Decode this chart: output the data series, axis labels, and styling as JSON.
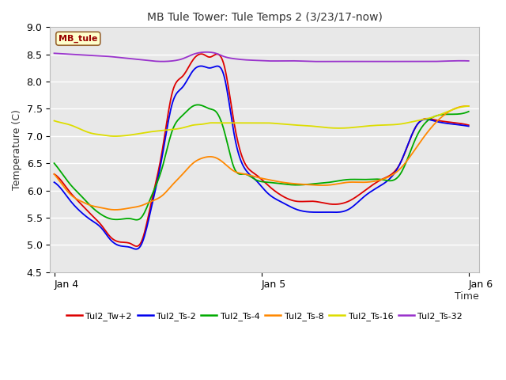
{
  "title": "MB Tule Tower: Tule Temps 2 (3/23/17-now)",
  "xlabel": "Time",
  "ylabel": "Temperature (C)",
  "ylim": [
    4.5,
    9.0
  ],
  "yticks": [
    4.5,
    5.0,
    5.5,
    6.0,
    6.5,
    7.0,
    7.5,
    8.0,
    8.5,
    9.0
  ],
  "xtick_labels": [
    "Jan 4",
    "Jan 5",
    "Jan 6"
  ],
  "plot_bg_color": "#e8e8e8",
  "fig_bg_color": "#ffffff",
  "annotation_box": {
    "text": "MB_tule",
    "facecolor": "#ffffcc",
    "edgecolor": "#996633",
    "textcolor": "#990000"
  },
  "series": {
    "Tul2_Tw+2": {
      "color": "#dd0000",
      "points_x": [
        0.0,
        0.04,
        0.08,
        0.13,
        0.18,
        0.23,
        0.27,
        0.32,
        0.37,
        0.42,
        0.47,
        0.52,
        0.57,
        0.62,
        0.67,
        0.72,
        0.75,
        0.78,
        0.82,
        0.87,
        0.92,
        0.97,
        1.03,
        1.1,
        1.17,
        1.25,
        1.33,
        1.42,
        1.5,
        1.58,
        1.67,
        1.75,
        1.83,
        1.92,
        2.0
      ],
      "points_y": [
        6.3,
        6.15,
        5.95,
        5.75,
        5.55,
        5.35,
        5.15,
        5.05,
        5.02,
        5.05,
        5.8,
        6.7,
        7.8,
        8.1,
        8.4,
        8.5,
        8.45,
        8.5,
        8.3,
        7.2,
        6.5,
        6.3,
        6.1,
        5.9,
        5.8,
        5.8,
        5.75,
        5.8,
        6.0,
        6.2,
        6.5,
        7.2,
        7.3,
        7.25,
        7.2
      ]
    },
    "Tul2_Ts-2": {
      "color": "#0000ee",
      "points_x": [
        0.0,
        0.04,
        0.08,
        0.13,
        0.18,
        0.23,
        0.27,
        0.32,
        0.37,
        0.42,
        0.47,
        0.52,
        0.57,
        0.62,
        0.67,
        0.72,
        0.75,
        0.78,
        0.82,
        0.87,
        0.92,
        0.97,
        1.03,
        1.1,
        1.17,
        1.25,
        1.33,
        1.42,
        1.5,
        1.58,
        1.67,
        1.75,
        1.83,
        1.92,
        2.0
      ],
      "points_y": [
        6.15,
        6.0,
        5.8,
        5.6,
        5.45,
        5.3,
        5.1,
        4.98,
        4.95,
        5.0,
        5.7,
        6.6,
        7.6,
        7.9,
        8.2,
        8.28,
        8.25,
        8.28,
        8.1,
        7.0,
        6.4,
        6.2,
        5.95,
        5.78,
        5.65,
        5.6,
        5.6,
        5.65,
        5.9,
        6.1,
        6.5,
        7.2,
        7.28,
        7.22,
        7.18
      ]
    },
    "Tul2_Ts-4": {
      "color": "#00aa00",
      "points_x": [
        0.0,
        0.04,
        0.08,
        0.13,
        0.18,
        0.23,
        0.27,
        0.32,
        0.37,
        0.42,
        0.47,
        0.52,
        0.57,
        0.62,
        0.67,
        0.72,
        0.75,
        0.78,
        0.82,
        0.87,
        0.92,
        0.97,
        1.03,
        1.1,
        1.17,
        1.25,
        1.33,
        1.42,
        1.5,
        1.58,
        1.67,
        1.75,
        1.83,
        1.92,
        2.0
      ],
      "points_y": [
        6.5,
        6.3,
        6.1,
        5.9,
        5.7,
        5.55,
        5.48,
        5.47,
        5.48,
        5.5,
        5.9,
        6.4,
        7.1,
        7.38,
        7.55,
        7.55,
        7.5,
        7.45,
        7.1,
        6.4,
        6.3,
        6.2,
        6.15,
        6.12,
        6.1,
        6.12,
        6.15,
        6.2,
        6.2,
        6.2,
        6.3,
        7.0,
        7.35,
        7.4,
        7.45
      ]
    },
    "Tul2_Ts-8": {
      "color": "#ff8800",
      "points_x": [
        0.0,
        0.04,
        0.08,
        0.13,
        0.18,
        0.23,
        0.27,
        0.32,
        0.37,
        0.42,
        0.47,
        0.52,
        0.57,
        0.62,
        0.67,
        0.72,
        0.75,
        0.78,
        0.82,
        0.87,
        0.92,
        0.97,
        1.03,
        1.1,
        1.17,
        1.25,
        1.33,
        1.42,
        1.5,
        1.58,
        1.67,
        1.75,
        1.83,
        1.92,
        2.0
      ],
      "points_y": [
        6.3,
        6.1,
        5.92,
        5.8,
        5.72,
        5.68,
        5.65,
        5.65,
        5.68,
        5.72,
        5.8,
        5.9,
        6.1,
        6.3,
        6.5,
        6.6,
        6.62,
        6.6,
        6.5,
        6.35,
        6.3,
        6.25,
        6.2,
        6.15,
        6.12,
        6.1,
        6.1,
        6.15,
        6.15,
        6.2,
        6.4,
        6.8,
        7.2,
        7.48,
        7.55
      ]
    },
    "Tul2_Ts-16": {
      "color": "#dddd00",
      "points_x": [
        0.0,
        0.04,
        0.08,
        0.13,
        0.18,
        0.23,
        0.27,
        0.32,
        0.37,
        0.42,
        0.47,
        0.52,
        0.57,
        0.62,
        0.67,
        0.72,
        0.75,
        0.78,
        0.82,
        0.87,
        0.92,
        0.97,
        1.03,
        1.1,
        1.17,
        1.25,
        1.33,
        1.42,
        1.5,
        1.58,
        1.67,
        1.75,
        1.83,
        1.92,
        2.0
      ],
      "points_y": [
        7.28,
        7.24,
        7.2,
        7.12,
        7.05,
        7.02,
        7.0,
        7.0,
        7.02,
        7.05,
        7.08,
        7.1,
        7.12,
        7.15,
        7.2,
        7.22,
        7.24,
        7.24,
        7.24,
        7.24,
        7.24,
        7.24,
        7.24,
        7.22,
        7.2,
        7.18,
        7.15,
        7.15,
        7.18,
        7.2,
        7.22,
        7.28,
        7.35,
        7.48,
        7.55
      ]
    },
    "Tul2_Ts-32": {
      "color": "#9933cc",
      "points_x": [
        0.0,
        0.04,
        0.08,
        0.13,
        0.18,
        0.23,
        0.27,
        0.32,
        0.37,
        0.42,
        0.47,
        0.52,
        0.57,
        0.62,
        0.67,
        0.72,
        0.75,
        0.78,
        0.82,
        0.87,
        0.92,
        0.97,
        1.03,
        1.1,
        1.17,
        1.25,
        1.33,
        1.42,
        1.5,
        1.58,
        1.67,
        1.75,
        1.83,
        1.92,
        2.0
      ],
      "points_y": [
        8.52,
        8.51,
        8.5,
        8.49,
        8.48,
        8.47,
        8.46,
        8.44,
        8.42,
        8.4,
        8.38,
        8.37,
        8.38,
        8.42,
        8.5,
        8.54,
        8.54,
        8.52,
        8.46,
        8.42,
        8.4,
        8.39,
        8.38,
        8.38,
        8.38,
        8.37,
        8.37,
        8.37,
        8.37,
        8.37,
        8.37,
        8.37,
        8.37,
        8.38,
        8.38
      ]
    }
  },
  "legend": [
    {
      "label": "Tul2_Tw+2",
      "color": "#dd0000"
    },
    {
      "label": "Tul2_Ts-2",
      "color": "#0000ee"
    },
    {
      "label": "Tul2_Ts-4",
      "color": "#00aa00"
    },
    {
      "label": "Tul2_Ts-8",
      "color": "#ff8800"
    },
    {
      "label": "Tul2_Ts-16",
      "color": "#dddd00"
    },
    {
      "label": "Tul2_Ts-32",
      "color": "#9933cc"
    }
  ]
}
